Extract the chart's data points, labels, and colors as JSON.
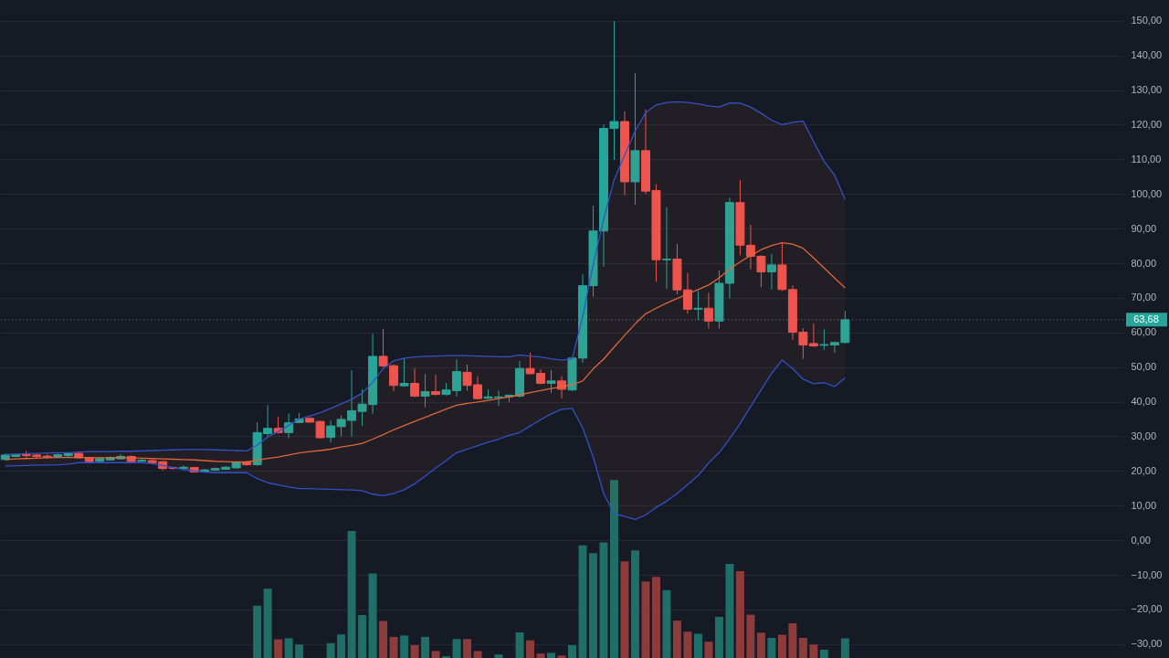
{
  "chart_data": {
    "type": "candlestick",
    "categories": [
      null,
      null,
      null,
      null,
      null,
      null,
      null,
      null,
      null,
      null,
      null,
      null,
      null,
      null,
      null,
      null,
      null,
      null,
      null,
      null,
      null,
      null,
      null,
      null,
      null,
      null,
      null,
      null,
      null,
      null,
      null,
      null,
      null,
      null,
      null,
      null,
      null,
      null,
      null,
      null,
      null,
      null,
      null,
      null,
      null,
      null,
      null,
      null,
      null,
      null,
      null,
      null,
      null,
      null,
      null,
      null,
      null,
      null,
      null,
      null,
      null,
      null,
      null,
      null,
      null,
      null,
      null,
      null,
      null,
      null,
      null,
      null,
      null,
      null,
      null,
      null,
      null,
      null,
      null,
      null,
      null
    ],
    "ohlc": [
      [
        23.3,
        25.0,
        23.0,
        24.6
      ],
      [
        24.2,
        25.0,
        24.0,
        24.7
      ],
      [
        24.7,
        25.8,
        23.6,
        24.4
      ],
      [
        24.6,
        25.0,
        23.8,
        24.2
      ],
      [
        24.3,
        24.9,
        23.5,
        24.0
      ],
      [
        24.2,
        25.0,
        24.0,
        24.7
      ],
      [
        24.4,
        25.3,
        24.0,
        25.1
      ],
      [
        25.1,
        25.3,
        23.6,
        23.8
      ],
      [
        23.9,
        24.0,
        22.5,
        22.7
      ],
      [
        22.8,
        24.0,
        22.5,
        23.6
      ],
      [
        23.2,
        24.2,
        23.0,
        23.9
      ],
      [
        23.5,
        24.8,
        23.3,
        24.2
      ],
      [
        24.2,
        24.5,
        22.5,
        22.7
      ],
      [
        22.8,
        23.8,
        22.6,
        23.1
      ],
      [
        23.0,
        23.2,
        22.2,
        22.4
      ],
      [
        22.7,
        22.9,
        20.2,
        20.7
      ],
      [
        21.0,
        21.2,
        20.5,
        20.7
      ],
      [
        20.7,
        21.6,
        20.3,
        21.1
      ],
      [
        21.0,
        21.2,
        19.5,
        19.7
      ],
      [
        19.8,
        20.6,
        19.6,
        20.3
      ],
      [
        20.3,
        21.0,
        20.0,
        20.7
      ],
      [
        20.5,
        21.4,
        20.3,
        21.1
      ],
      [
        20.9,
        22.8,
        20.7,
        22.6
      ],
      [
        22.6,
        23.0,
        21.5,
        21.8
      ],
      [
        21.8,
        34.1,
        21.5,
        31.1
      ],
      [
        30.8,
        39.0,
        30.0,
        32.3
      ],
      [
        32.3,
        35.7,
        30.8,
        31.1
      ],
      [
        31.1,
        36.6,
        29.5,
        33.9
      ],
      [
        34.0,
        36.8,
        33.8,
        35.0
      ],
      [
        35.2,
        35.5,
        33.9,
        34.1
      ],
      [
        34.3,
        34.5,
        29.3,
        29.6
      ],
      [
        29.7,
        34.6,
        28.2,
        33.0
      ],
      [
        32.8,
        36.1,
        30.0,
        34.9
      ],
      [
        34.6,
        49.1,
        30.0,
        37.4
      ],
      [
        37.2,
        43.6,
        33.0,
        39.3
      ],
      [
        39.2,
        59.6,
        36.5,
        53.1
      ],
      [
        53.1,
        61.0,
        50.0,
        50.3
      ],
      [
        50.4,
        50.8,
        43.0,
        44.7
      ],
      [
        44.6,
        52.6,
        44.3,
        45.3
      ],
      [
        45.3,
        49.7,
        41.3,
        41.6
      ],
      [
        41.6,
        48.0,
        38.4,
        42.9
      ],
      [
        42.9,
        47.8,
        41.8,
        42.1
      ],
      [
        42.1,
        45.4,
        41.8,
        43.4
      ],
      [
        43.2,
        52.2,
        41.5,
        48.7
      ],
      [
        48.5,
        50.7,
        43.2,
        44.7
      ],
      [
        44.9,
        47.4,
        40.6,
        40.9
      ],
      [
        41.0,
        43.6,
        40.8,
        41.4
      ],
      [
        41.2,
        43.2,
        38.8,
        41.4
      ],
      [
        41.4,
        42.1,
        39.8,
        41.9
      ],
      [
        41.6,
        51.8,
        41.2,
        49.6
      ],
      [
        49.6,
        54.1,
        47.8,
        48.1
      ],
      [
        48.2,
        49.4,
        45.0,
        45.3
      ],
      [
        45.3,
        49.1,
        42.5,
        46.0
      ],
      [
        46.0,
        47.4,
        40.9,
        43.6
      ],
      [
        43.4,
        53.0,
        43.0,
        52.6
      ],
      [
        52.6,
        76.8,
        51.3,
        73.5
      ],
      [
        73.5,
        96.6,
        70.3,
        89.3
      ],
      [
        89.3,
        120.0,
        79.0,
        118.9
      ],
      [
        118.9,
        149.9,
        109.8,
        120.9
      ],
      [
        120.9,
        123.9,
        99.7,
        103.5
      ],
      [
        103.5,
        134.9,
        96.9,
        112.5
      ],
      [
        112.5,
        124.4,
        100.0,
        100.8
      ],
      [
        101.0,
        102.8,
        74.6,
        81.0
      ],
      [
        81.0,
        96.2,
        72.6,
        81.2
      ],
      [
        81.2,
        85.6,
        71.0,
        72.3
      ],
      [
        72.3,
        77.2,
        65.4,
        66.7
      ],
      [
        66.7,
        72.0,
        63.6,
        67.0
      ],
      [
        67.0,
        71.4,
        61.2,
        63.3
      ],
      [
        63.3,
        77.9,
        61.2,
        74.2
      ],
      [
        74.2,
        98.9,
        69.8,
        97.5
      ],
      [
        97.5,
        104.0,
        82.3,
        85.2
      ],
      [
        85.2,
        91.1,
        78.2,
        82.0
      ],
      [
        82.0,
        82.3,
        73.1,
        77.5
      ],
      [
        77.5,
        82.6,
        72.4,
        79.5
      ],
      [
        79.5,
        86.1,
        72.0,
        72.4
      ],
      [
        72.4,
        73.6,
        57.9,
        60.1
      ],
      [
        60.1,
        61.2,
        52.4,
        56.4
      ],
      [
        56.8,
        62.6,
        55.8,
        56.1
      ],
      [
        56.3,
        60.9,
        55.0,
        56.5
      ],
      [
        56.4,
        57.4,
        54.1,
        57.1
      ],
      [
        57.1,
        66.2,
        56.8,
        63.68
      ]
    ],
    "colors": [
      "#26a69a",
      "#26a69a",
      "#ef5350",
      "#ef5350",
      "#ef5350",
      "#26a69a",
      "#26a69a",
      "#ef5350",
      "#ef5350",
      "#26a69a",
      "#26a69a",
      "#26a69a",
      "#ef5350",
      "#26a69a",
      "#ef5350",
      "#ef5350",
      "#ef5350",
      "#26a69a",
      "#ef5350",
      "#26a69a",
      "#26a69a",
      "#26a69a",
      "#26a69a",
      "#ef5350",
      "#26a69a",
      "#26a69a",
      "#ef5350",
      "#26a69a",
      "#26a69a",
      "#ef5350",
      "#ef5350",
      "#26a69a",
      "#26a69a",
      "#26a69a",
      "#26a69a",
      "#26a69a",
      "#ef5350",
      "#ef5350",
      "#26a69a",
      "#ef5350",
      "#26a69a",
      "#ef5350",
      "#26a69a",
      "#26a69a",
      "#ef5350",
      "#ef5350",
      "#26a69a",
      "#26a69a",
      "#26a69a",
      "#26a69a",
      "#ef5350",
      "#ef5350",
      "#26a69a",
      "#ef5350",
      "#26a69a",
      "#26a69a",
      "#26a69a",
      "#26a69a",
      "#26a69a",
      "#ef5350",
      "#26a69a",
      "#ef5350",
      "#ef5350",
      "#26a69a",
      "#ef5350",
      "#ef5350",
      "#26a69a",
      "#ef5350",
      "#26a69a",
      "#26a69a",
      "#ef5350",
      "#ef5350",
      "#ef5350",
      "#26a69a",
      "#ef5350",
      "#ef5350",
      "#ef5350",
      "#ef5350",
      "#26a69a",
      "#26a69a",
      "#26a69a"
    ],
    "ylim": [
      -34,
      156
    ],
    "yticks": [
      {
        "value": -30,
        "label": "−30,00"
      },
      {
        "value": -20,
        "label": "−20,00"
      },
      {
        "value": -10,
        "label": "−10,00"
      },
      {
        "value": 0,
        "label": "0,00"
      },
      {
        "value": 10,
        "label": "10,00"
      },
      {
        "value": 20,
        "label": "20,00"
      },
      {
        "value": 30,
        "label": "30,00"
      },
      {
        "value": 40,
        "label": "40,00"
      },
      {
        "value": 50,
        "label": "50,00"
      },
      {
        "value": 60,
        "label": "60,00"
      },
      {
        "value": 70,
        "label": "70,00"
      },
      {
        "value": 80,
        "label": "80,00"
      },
      {
        "value": 90,
        "label": "90,00"
      },
      {
        "value": 100,
        "label": "100,00"
      },
      {
        "value": 110,
        "label": "110,00"
      },
      {
        "value": 120,
        "label": "120,00"
      },
      {
        "value": 130,
        "label": "130,00"
      },
      {
        "value": 140,
        "label": "140,00"
      },
      {
        "value": 150,
        "label": "150,00"
      }
    ],
    "grid": "y",
    "tick_labels": "y",
    "ref_lines": [
      {
        "axis": "y",
        "value": 63.68,
        "label": "63,68",
        "color": "#26a69a",
        "line_style": "dotted"
      }
    ],
    "series": [
      {
        "type": "line",
        "color": "#3152c8",
        "values": [
          24.8,
          24.9,
          25.0,
          25.1,
          25.2,
          25.3,
          25.3,
          25.5,
          25.6,
          25.6,
          25.6,
          25.7,
          25.7,
          25.8,
          25.9,
          26.0,
          26.1,
          26.2,
          26.2,
          26.2,
          26.1,
          26.0,
          25.9,
          25.8,
          27.5,
          29.8,
          31.4,
          33.2,
          35.0,
          35.9,
          36.8,
          38.1,
          39.4,
          40.7,
          42.5,
          45.6,
          49.6,
          51.8,
          52.6,
          52.9,
          53.1,
          53.2,
          53.3,
          53.3,
          53.3,
          53.2,
          53.1,
          53.0,
          53.0,
          53.5,
          53.2,
          52.9,
          52.4,
          52.0,
          52.4,
          64.5,
          79.5,
          92.7,
          104.1,
          111.2,
          118.2,
          123.5,
          125.7,
          126.4,
          126.6,
          126.4,
          126.0,
          125.4,
          125.1,
          126.3,
          126.2,
          125.1,
          123.3,
          121.3,
          120.0,
          120.7,
          121.0,
          115.1,
          109.4,
          105.4,
          98.4
        ]
      },
      {
        "type": "line",
        "color": "#e0663a",
        "values": [
          23.3,
          23.5,
          23.6,
          23.7,
          23.8,
          23.9,
          23.9,
          23.9,
          23.9,
          23.8,
          23.8,
          23.8,
          23.8,
          23.7,
          23.6,
          23.5,
          23.4,
          23.3,
          23.2,
          23.0,
          22.8,
          22.7,
          22.6,
          22.6,
          23.1,
          23.6,
          24.0,
          24.6,
          25.2,
          25.6,
          25.9,
          26.3,
          26.9,
          27.4,
          28.0,
          29.2,
          30.5,
          31.9,
          33.1,
          34.3,
          35.5,
          36.7,
          37.9,
          39.0,
          39.5,
          39.9,
          40.4,
          40.9,
          41.4,
          42.0,
          42.6,
          43.2,
          43.8,
          44.3,
          44.9,
          46.0,
          49.5,
          52.3,
          55.8,
          59.2,
          62.5,
          65.4,
          67.0,
          68.5,
          69.8,
          71.1,
          72.4,
          73.7,
          75.8,
          78.3,
          80.4,
          82.2,
          83.9,
          85.1,
          85.9,
          85.5,
          84.3,
          81.5,
          78.6,
          75.7,
          72.9
        ],
        "lower": [
          21.4,
          21.5,
          21.6,
          21.7,
          21.7,
          21.8,
          22.0,
          22.4,
          22.4,
          22.4,
          22.4,
          22.4,
          22.4,
          22.4,
          22.1,
          21.6,
          21.0,
          20.4,
          20.0,
          19.7,
          19.5,
          19.5,
          19.5,
          19.5,
          17.8,
          16.6,
          16.0,
          15.4,
          14.9,
          14.9,
          14.8,
          14.7,
          14.6,
          14.5,
          14.3,
          13.3,
          12.9,
          13.5,
          14.6,
          16.3,
          18.5,
          20.8,
          23.0,
          25.3,
          26.3,
          27.3,
          28.3,
          29.2,
          30.3,
          31.1,
          33.0,
          34.8,
          36.5,
          37.8,
          38.1,
          32.5,
          24.0,
          13.5,
          7.7,
          6.9,
          6.0,
          7.3,
          9.5,
          11.3,
          13.5,
          16.1,
          18.7,
          22.3,
          25.3,
          29.3,
          33.7,
          38.6,
          43.4,
          48.2,
          52.0,
          49.6,
          46.5,
          45.2,
          45.5,
          44.4,
          46.9
        ],
        "upper": [
          24.8,
          24.9,
          25.0,
          25.1,
          25.2,
          25.3,
          25.3,
          25.5,
          25.6,
          25.6,
          25.6,
          25.7,
          25.7,
          25.8,
          25.9,
          26.0,
          26.1,
          26.2,
          26.2,
          26.2,
          26.1,
          26.0,
          25.9,
          25.8,
          27.5,
          29.8,
          31.4,
          33.2,
          35.0,
          35.9,
          36.8,
          38.1,
          39.4,
          40.7,
          42.5,
          45.6,
          49.6,
          51.8,
          52.6,
          52.9,
          53.1,
          53.2,
          53.3,
          53.3,
          53.3,
          53.2,
          53.1,
          53.0,
          53.0,
          53.5,
          53.2,
          52.9,
          52.4,
          52.0,
          52.4,
          64.5,
          79.5,
          92.7,
          104.1,
          111.2,
          118.2,
          123.5,
          125.7,
          126.4,
          126.6,
          126.4,
          126.0,
          125.4,
          125.1,
          126.3,
          126.2,
          125.1,
          123.3,
          121.3,
          120.0,
          120.7,
          121.0,
          115.1,
          109.4,
          105.4,
          98.4
        ]
      },
      {
        "type": "line",
        "color": "#3152c8",
        "values": [
          21.4,
          21.5,
          21.6,
          21.7,
          21.7,
          21.8,
          22.0,
          22.4,
          22.4,
          22.4,
          22.4,
          22.4,
          22.4,
          22.4,
          22.1,
          21.6,
          21.0,
          20.4,
          20.0,
          19.7,
          19.5,
          19.5,
          19.5,
          19.5,
          17.8,
          16.6,
          16.0,
          15.4,
          14.9,
          14.9,
          14.8,
          14.7,
          14.6,
          14.5,
          14.3,
          13.3,
          12.9,
          13.5,
          14.6,
          16.3,
          18.5,
          20.8,
          23.0,
          25.3,
          26.3,
          27.3,
          28.3,
          29.2,
          30.3,
          31.1,
          33.0,
          34.8,
          36.5,
          37.8,
          38.1,
          32.5,
          24.0,
          13.5,
          7.7,
          6.9,
          6.0,
          7.3,
          9.5,
          11.3,
          13.5,
          16.1,
          18.7,
          22.3,
          25.3,
          29.3,
          33.7,
          38.6,
          43.4,
          48.2,
          52.0,
          49.6,
          46.5,
          45.2,
          45.5,
          44.4,
          46.9
        ]
      },
      {
        "type": "bar",
        "values": [
          null,
          null,
          null,
          null,
          null,
          null,
          null,
          null,
          null,
          null,
          null,
          null,
          null,
          null,
          null,
          null,
          null,
          null,
          null,
          null,
          null,
          null,
          null,
          null,
          15.1,
          20.0,
          5.4,
          5.7,
          3.9,
          null,
          null,
          4.3,
          6.8,
          36.7,
          12.4,
          24.4,
          10.7,
          6.1,
          6.5,
          3.7,
          6.1,
          2.0,
          0.5,
          5.5,
          5.5,
          2.0,
          null,
          1.0,
          null,
          7.4,
          5.1,
          1.3,
          1.5,
          0.7,
          3.7,
          32.5,
          30.3,
          33.4,
          51.4,
          27.9,
          31.1,
          22.1,
          23.4,
          19.6,
          10.8,
          7.6,
          7.0,
          4.7,
          11.9,
          27.2,
          25.1,
          12.5,
          7.3,
          5.8,
          6.7,
          10.0,
          5.8,
          3.9,
          2.4,
          null,
          5.7
        ],
        "base": [
          null,
          null,
          null,
          null,
          null,
          null,
          null,
          null,
          null,
          null,
          null,
          null,
          null,
          null,
          null,
          null,
          null,
          null,
          null,
          null,
          null,
          null,
          null,
          null,
          -34,
          -34,
          -34,
          -34,
          -34,
          null,
          null,
          -34,
          -34,
          -34,
          -34,
          -34,
          -34,
          -34,
          -34,
          -34,
          -34,
          -34,
          -34,
          -34,
          -34,
          -34,
          null,
          -34,
          null,
          -34,
          -34,
          -34,
          -34,
          -34,
          -34,
          -34,
          -34,
          -34,
          -34,
          -34,
          -34,
          -34,
          -34,
          -34,
          -34,
          -34,
          -34,
          -34,
          -34,
          -34,
          -34,
          -34,
          -34,
          -34,
          -34,
          -34,
          -34,
          -34,
          -34,
          null,
          -34
        ],
        "colors": [
          null,
          null,
          null,
          null,
          null,
          null,
          null,
          null,
          null,
          null,
          null,
          null,
          null,
          null,
          null,
          null,
          null,
          null,
          null,
          null,
          null,
          null,
          null,
          null,
          "#1f6f68",
          "#1f6f68",
          "#8e3b3b",
          "#1f6f68",
          "#1f6f68",
          null,
          null,
          "#1f6f68",
          "#1f6f68",
          "#1f6f68",
          "#1f6f68",
          "#1f6f68",
          "#8e3b3b",
          "#8e3b3b",
          "#1f6f68",
          "#8e3b3b",
          "#1f6f68",
          "#8e3b3b",
          "#1f6f68",
          "#1f6f68",
          "#8e3b3b",
          "#8e3b3b",
          null,
          "#1f6f68",
          null,
          "#1f6f68",
          "#8e3b3b",
          "#8e3b3b",
          "#1f6f68",
          "#8e3b3b",
          "#1f6f68",
          "#1f6f68",
          "#1f6f68",
          "#1f6f68",
          "#1f6f68",
          "#8e3b3b",
          "#1f6f68",
          "#8e3b3b",
          "#8e3b3b",
          "#1f6f68",
          "#8e3b3b",
          "#8e3b3b",
          "#1f6f68",
          "#8e3b3b",
          "#1f6f68",
          "#1f6f68",
          "#8e3b3b",
          "#8e3b3b",
          "#8e3b3b",
          "#1f6f68",
          "#8e3b3b",
          "#8e3b3b",
          "#8e3b3b",
          "#8e3b3b",
          "#1f6f68",
          null,
          "#1f6f68"
        ]
      }
    ]
  }
}
